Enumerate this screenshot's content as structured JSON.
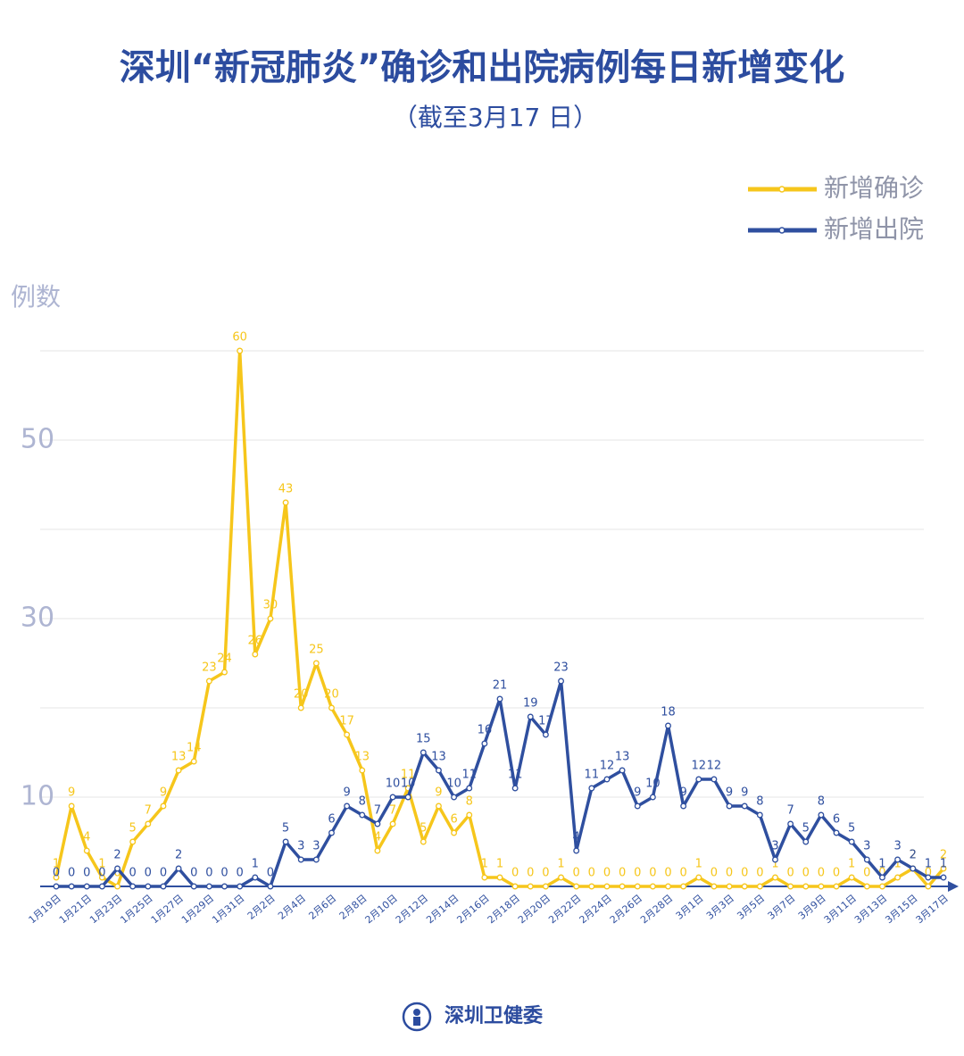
{
  "chart_data": {
    "type": "line",
    "title": "深圳“新冠肺炎”确诊和出院病例每日新增变化",
    "subtitle": "（截至3月17 日）",
    "y_label": "例数",
    "categories": [
      "1月19日",
      null,
      "1月21日",
      null,
      "1月23日",
      null,
      "1月25日",
      null,
      "1月27日",
      null,
      "1月29日",
      null,
      "1月31日",
      null,
      "2月2日",
      null,
      "2月4日",
      null,
      "2月6日",
      null,
      "2月8日",
      null,
      "2月10日",
      null,
      "2月12日",
      null,
      "2月14日",
      null,
      "2月16日",
      null,
      "2月18日",
      null,
      "2月20日",
      null,
      "2月22日",
      null,
      "2月24日",
      null,
      "2月26日",
      null,
      "2月28日",
      null,
      "3月1日",
      null,
      "3月3日",
      null,
      "3月5日",
      null,
      "3月7日",
      null,
      "3月9日",
      null,
      "3月11日",
      null,
      "3月13日",
      null,
      "3月15日",
      null,
      "3月17日"
    ],
    "series": [
      {
        "name": "新增确诊",
        "color": "#f6c61b",
        "values": [
          1,
          9,
          4,
          1,
          0,
          5,
          7,
          9,
          13,
          14,
          23,
          24,
          60,
          26,
          30,
          43,
          20,
          25,
          20,
          17,
          13,
          4,
          7,
          11,
          5,
          9,
          6,
          8,
          1,
          1,
          0,
          0,
          0,
          1,
          0,
          0,
          0,
          0,
          0,
          0,
          0,
          0,
          1,
          0,
          0,
          0,
          0,
          1,
          0,
          0,
          0,
          0,
          1,
          0,
          0,
          1,
          2,
          0,
          2
        ]
      },
      {
        "name": "新增出院",
        "color": "#2f4f9f",
        "values": [
          0,
          0,
          0,
          0,
          2,
          0,
          0,
          0,
          2,
          0,
          0,
          0,
          0,
          1,
          0,
          5,
          3,
          3,
          6,
          9,
          8,
          7,
          10,
          10,
          15,
          13,
          10,
          11,
          16,
          21,
          11,
          19,
          17,
          23,
          4,
          11,
          12,
          13,
          9,
          10,
          18,
          9,
          12,
          12,
          9,
          9,
          8,
          3,
          7,
          5,
          8,
          6,
          5,
          3,
          1,
          3,
          2,
          1,
          1
        ]
      }
    ],
    "ylim": [
      0,
      60
    ],
    "yticks": [
      10,
      30,
      50
    ],
    "grid_lines": [
      10,
      20,
      30,
      40,
      50,
      60
    ],
    "legend": "upper right"
  },
  "footer": "深圳卫健委"
}
